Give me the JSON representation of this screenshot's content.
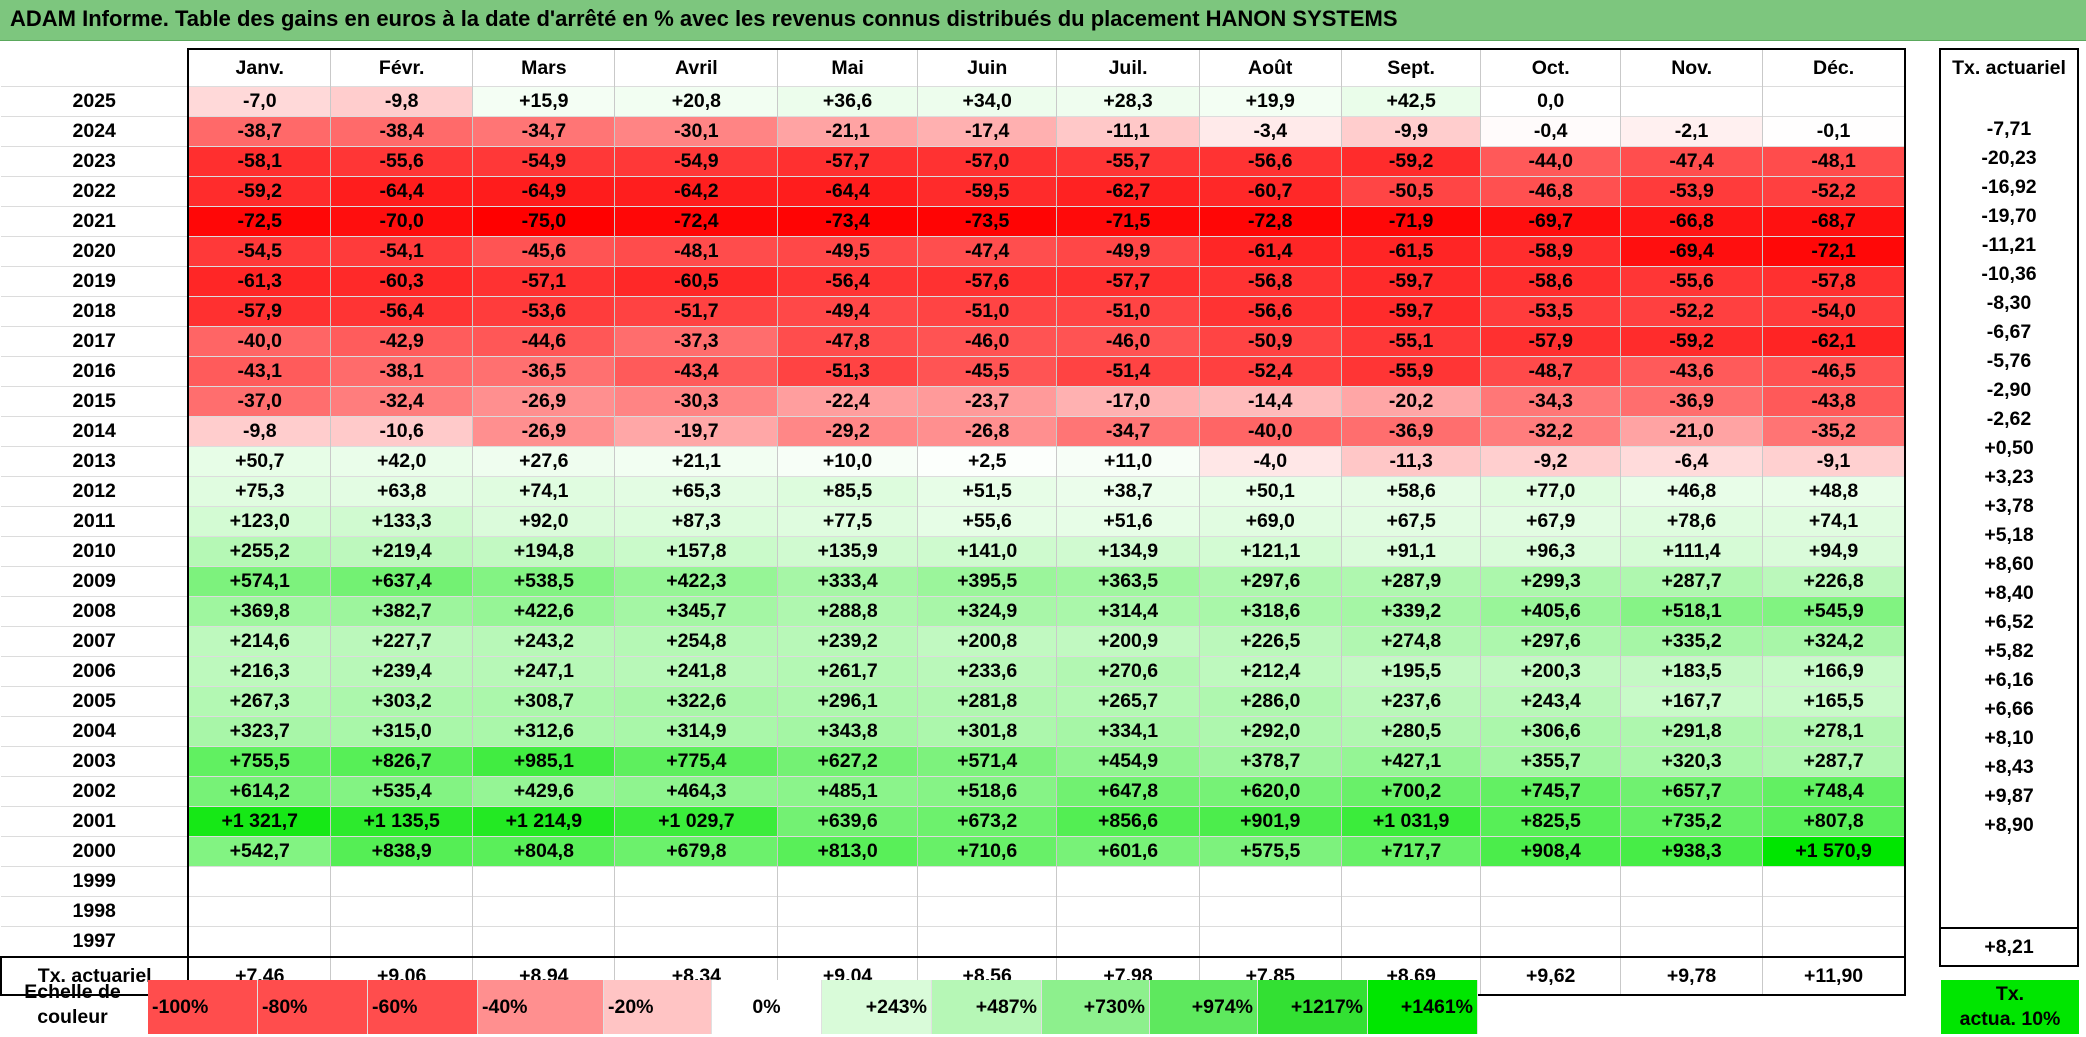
{
  "title": "ADAM Informe. Table des gains en euros à la date d'arrêté en % avec les revenus connus distribués du placement HANON SYSTEMS",
  "months": [
    "Janv.",
    "Févr.",
    "Mars",
    "Avril",
    "Mai",
    "Juin",
    "Juil.",
    "Août",
    "Sept.",
    "Oct.",
    "Nov.",
    "Déc."
  ],
  "annual_header": "Tx. actuariel",
  "rows": [
    {
      "year": "2025",
      "values": [
        "-7,0",
        "-9,8",
        "+15,9",
        "+20,8",
        "+36,6",
        "+34,0",
        "+28,3",
        "+19,9",
        "+42,5",
        "0,0",
        "",
        ""
      ],
      "annual": ""
    },
    {
      "year": "2024",
      "values": [
        "-38,7",
        "-38,4",
        "-34,7",
        "-30,1",
        "-21,1",
        "-17,4",
        "-11,1",
        "-3,4",
        "-9,9",
        "-0,4",
        "-2,1",
        "-0,1"
      ],
      "annual": "-7,71"
    },
    {
      "year": "2023",
      "values": [
        "-58,1",
        "-55,6",
        "-54,9",
        "-54,9",
        "-57,7",
        "-57,0",
        "-55,7",
        "-56,6",
        "-59,2",
        "-44,0",
        "-47,4",
        "-48,1"
      ],
      "annual": "-20,23"
    },
    {
      "year": "2022",
      "values": [
        "-59,2",
        "-64,4",
        "-64,9",
        "-64,2",
        "-64,4",
        "-59,5",
        "-62,7",
        "-60,7",
        "-50,5",
        "-46,8",
        "-53,9",
        "-52,2"
      ],
      "annual": "-16,92"
    },
    {
      "year": "2021",
      "values": [
        "-72,5",
        "-70,0",
        "-75,0",
        "-72,4",
        "-73,4",
        "-73,5",
        "-71,5",
        "-72,8",
        "-71,9",
        "-69,7",
        "-66,8",
        "-68,7"
      ],
      "annual": "-19,70"
    },
    {
      "year": "2020",
      "values": [
        "-54,5",
        "-54,1",
        "-45,6",
        "-48,1",
        "-49,5",
        "-47,4",
        "-49,9",
        "-61,4",
        "-61,5",
        "-58,9",
        "-69,4",
        "-72,1"
      ],
      "annual": "-11,21"
    },
    {
      "year": "2019",
      "values": [
        "-61,3",
        "-60,3",
        "-57,1",
        "-60,5",
        "-56,4",
        "-57,6",
        "-57,7",
        "-56,8",
        "-59,7",
        "-58,6",
        "-55,6",
        "-57,8"
      ],
      "annual": "-10,36"
    },
    {
      "year": "2018",
      "values": [
        "-57,9",
        "-56,4",
        "-53,6",
        "-51,7",
        "-49,4",
        "-51,0",
        "-51,0",
        "-56,6",
        "-59,7",
        "-53,5",
        "-52,2",
        "-54,0"
      ],
      "annual": "-8,30"
    },
    {
      "year": "2017",
      "values": [
        "-40,0",
        "-42,9",
        "-44,6",
        "-37,3",
        "-47,8",
        "-46,0",
        "-46,0",
        "-50,9",
        "-55,1",
        "-57,9",
        "-59,2",
        "-62,1"
      ],
      "annual": "-6,67"
    },
    {
      "year": "2016",
      "values": [
        "-43,1",
        "-38,1",
        "-36,5",
        "-43,4",
        "-51,3",
        "-45,5",
        "-51,4",
        "-52,4",
        "-55,9",
        "-48,7",
        "-43,6",
        "-46,5"
      ],
      "annual": "-5,76"
    },
    {
      "year": "2015",
      "values": [
        "-37,0",
        "-32,4",
        "-26,9",
        "-30,3",
        "-22,4",
        "-23,7",
        "-17,0",
        "-14,4",
        "-20,2",
        "-34,3",
        "-36,9",
        "-43,8"
      ],
      "annual": "-2,90"
    },
    {
      "year": "2014",
      "values": [
        "-9,8",
        "-10,6",
        "-26,9",
        "-19,7",
        "-29,2",
        "-26,8",
        "-34,7",
        "-40,0",
        "-36,9",
        "-32,2",
        "-21,0",
        "-35,2"
      ],
      "annual": "-2,62"
    },
    {
      "year": "2013",
      "values": [
        "+50,7",
        "+42,0",
        "+27,6",
        "+21,1",
        "+10,0",
        "+2,5",
        "+11,0",
        "-4,0",
        "-11,3",
        "-9,2",
        "-6,4",
        "-9,1"
      ],
      "annual": "+0,50"
    },
    {
      "year": "2012",
      "values": [
        "+75,3",
        "+63,8",
        "+74,1",
        "+65,3",
        "+85,5",
        "+51,5",
        "+38,7",
        "+50,1",
        "+58,6",
        "+77,0",
        "+46,8",
        "+48,8"
      ],
      "annual": "+3,23"
    },
    {
      "year": "2011",
      "values": [
        "+123,0",
        "+133,3",
        "+92,0",
        "+87,3",
        "+77,5",
        "+55,6",
        "+51,6",
        "+69,0",
        "+67,5",
        "+67,9",
        "+78,6",
        "+74,1"
      ],
      "annual": "+3,78"
    },
    {
      "year": "2010",
      "values": [
        "+255,2",
        "+219,4",
        "+194,8",
        "+157,8",
        "+135,9",
        "+141,0",
        "+134,9",
        "+121,1",
        "+91,1",
        "+96,3",
        "+111,4",
        "+94,9"
      ],
      "annual": "+5,18"
    },
    {
      "year": "2009",
      "values": [
        "+574,1",
        "+637,4",
        "+538,5",
        "+422,3",
        "+333,4",
        "+395,5",
        "+363,5",
        "+297,6",
        "+287,9",
        "+299,3",
        "+287,7",
        "+226,8"
      ],
      "annual": "+8,60"
    },
    {
      "year": "2008",
      "values": [
        "+369,8",
        "+382,7",
        "+422,6",
        "+345,7",
        "+288,8",
        "+324,9",
        "+314,4",
        "+318,6",
        "+339,2",
        "+405,6",
        "+518,1",
        "+545,9"
      ],
      "annual": "+8,40"
    },
    {
      "year": "2007",
      "values": [
        "+214,6",
        "+227,7",
        "+243,2",
        "+254,8",
        "+239,2",
        "+200,8",
        "+200,9",
        "+226,5",
        "+274,8",
        "+297,6",
        "+335,2",
        "+324,2"
      ],
      "annual": "+6,52"
    },
    {
      "year": "2006",
      "values": [
        "+216,3",
        "+239,4",
        "+247,1",
        "+241,8",
        "+261,7",
        "+233,6",
        "+270,6",
        "+212,4",
        "+195,5",
        "+200,3",
        "+183,5",
        "+166,9"
      ],
      "annual": "+5,82"
    },
    {
      "year": "2005",
      "values": [
        "+267,3",
        "+303,2",
        "+308,7",
        "+322,6",
        "+296,1",
        "+281,8",
        "+265,7",
        "+286,0",
        "+237,6",
        "+243,4",
        "+167,7",
        "+165,5"
      ],
      "annual": "+6,16"
    },
    {
      "year": "2004",
      "values": [
        "+323,7",
        "+315,0",
        "+312,6",
        "+314,9",
        "+343,8",
        "+301,8",
        "+334,1",
        "+292,0",
        "+280,5",
        "+306,6",
        "+291,8",
        "+278,1"
      ],
      "annual": "+6,66"
    },
    {
      "year": "2003",
      "values": [
        "+755,5",
        "+826,7",
        "+985,1",
        "+775,4",
        "+627,2",
        "+571,4",
        "+454,9",
        "+378,7",
        "+427,1",
        "+355,7",
        "+320,3",
        "+287,7"
      ],
      "annual": "+8,10"
    },
    {
      "year": "2002",
      "values": [
        "+614,2",
        "+535,4",
        "+429,6",
        "+464,3",
        "+485,1",
        "+518,6",
        "+647,8",
        "+620,0",
        "+700,2",
        "+745,7",
        "+657,7",
        "+748,4"
      ],
      "annual": "+8,43"
    },
    {
      "year": "2001",
      "values": [
        "+1 321,7",
        "+1 135,5",
        "+1 214,9",
        "+1 029,7",
        "+639,6",
        "+673,2",
        "+856,6",
        "+901,9",
        "+1 031,9",
        "+825,5",
        "+735,2",
        "+807,8"
      ],
      "annual": "+9,87"
    },
    {
      "year": "2000",
      "values": [
        "+542,7",
        "+838,9",
        "+804,8",
        "+679,8",
        "+813,0",
        "+710,6",
        "+601,6",
        "+575,5",
        "+717,7",
        "+908,4",
        "+938,3",
        "+1 570,9"
      ],
      "annual": "+8,90"
    },
    {
      "year": "1999",
      "values": [
        "",
        "",
        "",
        "",
        "",
        "",
        "",
        "",
        "",
        "",
        "",
        ""
      ],
      "annual": ""
    },
    {
      "year": "1998",
      "values": [
        "",
        "",
        "",
        "",
        "",
        "",
        "",
        "",
        "",
        "",
        "",
        ""
      ],
      "annual": ""
    },
    {
      "year": "1997",
      "values": [
        "",
        "",
        "",
        "",
        "",
        "",
        "",
        "",
        "",
        "",
        "",
        ""
      ],
      "annual": ""
    }
  ],
  "footer": {
    "label": "Tx. actuariel",
    "values": [
      "+7,46",
      "+9,06",
      "+8,94",
      "+8,34",
      "+9,04",
      "+8,56",
      "+7,98",
      "+7,85",
      "+8,69",
      "+9,62",
      "+9,78",
      "+11,90"
    ],
    "annual": "+8,21"
  },
  "scale": {
    "label_line1": "Echelle de",
    "label_line2": "couleur",
    "items": [
      "-100%",
      "-80%",
      "-60%",
      "-40%",
      "-20%",
      "0%",
      "+243%",
      "+487%",
      "+730%",
      "+974%",
      "+1217%",
      "+1461%"
    ],
    "tx_line1": "Tx.",
    "tx_line2": "actua. 10%"
  },
  "colors": {
    "title_bg": "#7dc67e",
    "negative_max": "#ff0000",
    "positive_max": "#00e600",
    "neutral": "#ffffff"
  },
  "scale_colors": [
    "#ff4d4d",
    "#ff4d4d",
    "#ff4d4d",
    "#ff8f8f",
    "#ffc4c4",
    "#ffffff",
    "#d9fbd9",
    "#b6f7b6",
    "#8df08d",
    "#5ee85e",
    "#33e033",
    "#00e600"
  ]
}
